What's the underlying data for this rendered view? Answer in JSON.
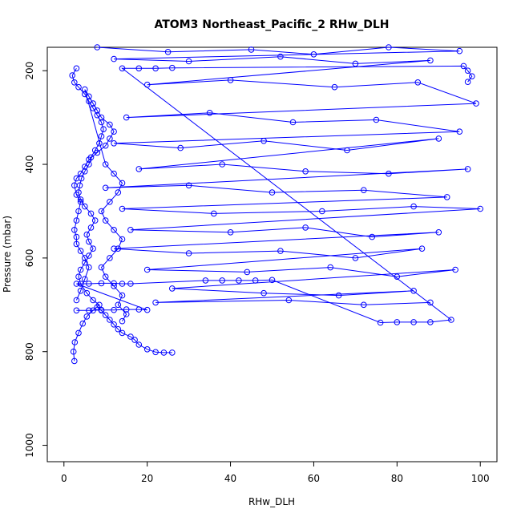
{
  "chart_data": {
    "type": "scatter",
    "title": "ATOM3 Northeast_Pacific_2 RHw_DLH",
    "xlabel": "RHw_DLH",
    "ylabel": "Pressure (mbar)",
    "xlim": [
      -4,
      104
    ],
    "ylim": [
      1035,
      150
    ],
    "y_reversed": true,
    "x_ticks": [
      0,
      20,
      40,
      60,
      80,
      100
    ],
    "y_ticks": [
      200,
      400,
      600,
      800,
      1000
    ],
    "grid": false,
    "legend": "none",
    "marker": "open-circle",
    "color": "#0000ff",
    "series": [
      {
        "values": [
          [
            2.5,
            820
          ],
          [
            2.3,
            800
          ],
          [
            2.6,
            780
          ],
          [
            3.5,
            760
          ],
          [
            4.5,
            740
          ],
          [
            5.5,
            725
          ],
          [
            7.0,
            712
          ],
          [
            8.5,
            700
          ],
          [
            7.0,
            690
          ],
          [
            5.5,
            675
          ],
          [
            4.0,
            655
          ],
          [
            3.5,
            640
          ],
          [
            4.0,
            625
          ],
          [
            5.0,
            610
          ],
          [
            6.0,
            595
          ],
          [
            7.0,
            580
          ],
          [
            6.0,
            565
          ],
          [
            5.5,
            550
          ],
          [
            6.5,
            535
          ],
          [
            7.5,
            520
          ],
          [
            6.5,
            505
          ],
          [
            5.0,
            490
          ],
          [
            4.0,
            475
          ],
          [
            3.5,
            460
          ],
          [
            3.8,
            445
          ],
          [
            4.2,
            430
          ],
          [
            5.0,
            415
          ],
          [
            6.0,
            400
          ],
          [
            6.5,
            385
          ],
          [
            7.5,
            370
          ],
          [
            8.5,
            355
          ],
          [
            9.0,
            340
          ],
          [
            9.5,
            325
          ],
          [
            9.0,
            310
          ],
          [
            8.0,
            295
          ],
          [
            7.0,
            280
          ],
          [
            6.0,
            265
          ],
          [
            5.0,
            250
          ],
          [
            3.5,
            235
          ],
          [
            2.5,
            225
          ],
          [
            2.0,
            210
          ],
          [
            3.0,
            195
          ]
        ]
      },
      {
        "values": [
          [
            26,
            802
          ],
          [
            24,
            802
          ],
          [
            22,
            801
          ],
          [
            20,
            795
          ],
          [
            18,
            785
          ],
          [
            17,
            775
          ],
          [
            16,
            768
          ],
          [
            14,
            760
          ],
          [
            13,
            752
          ],
          [
            12,
            742
          ],
          [
            11,
            732
          ],
          [
            10,
            722
          ],
          [
            9,
            712
          ],
          [
            8,
            705
          ]
        ]
      },
      {
        "values": [
          [
            3,
            712
          ],
          [
            6,
            712
          ],
          [
            9,
            711
          ],
          [
            12,
            711
          ],
          [
            15,
            710
          ],
          [
            18,
            710
          ],
          [
            20,
            711
          ],
          [
            3,
            655
          ],
          [
            6,
            655
          ],
          [
            9,
            654
          ],
          [
            12,
            654
          ],
          [
            14,
            655
          ],
          [
            16,
            655
          ],
          [
            34,
            648
          ],
          [
            38,
            648
          ],
          [
            42,
            648
          ],
          [
            46,
            648
          ],
          [
            50,
            647
          ],
          [
            76,
            738
          ],
          [
            80,
            737
          ],
          [
            84,
            737
          ],
          [
            88,
            737
          ],
          [
            93,
            732
          ],
          [
            14,
            195
          ],
          [
            18,
            195
          ],
          [
            22,
            195
          ],
          [
            26,
            194
          ],
          [
            96,
            190
          ],
          [
            97,
            200
          ],
          [
            98,
            212
          ],
          [
            97,
            224
          ]
        ]
      },
      {
        "values": [
          [
            8,
            150
          ],
          [
            25,
            160
          ],
          [
            45,
            155
          ],
          [
            60,
            165
          ],
          [
            78,
            150
          ],
          [
            95,
            158
          ],
          [
            12,
            175
          ],
          [
            30,
            180
          ],
          [
            52,
            170
          ],
          [
            70,
            185
          ],
          [
            88,
            178
          ],
          [
            20,
            230
          ],
          [
            40,
            220
          ],
          [
            65,
            235
          ],
          [
            85,
            225
          ],
          [
            99,
            270
          ],
          [
            15,
            300
          ],
          [
            35,
            290
          ],
          [
            55,
            310
          ],
          [
            75,
            305
          ],
          [
            95,
            330
          ],
          [
            12,
            355
          ],
          [
            28,
            365
          ],
          [
            48,
            350
          ],
          [
            68,
            370
          ],
          [
            90,
            345
          ],
          [
            18,
            410
          ],
          [
            38,
            400
          ],
          [
            58,
            415
          ],
          [
            78,
            420
          ],
          [
            97,
            410
          ],
          [
            10,
            450
          ],
          [
            30,
            445
          ],
          [
            50,
            460
          ],
          [
            72,
            455
          ],
          [
            92,
            470
          ],
          [
            14,
            495
          ],
          [
            36,
            505
          ],
          [
            62,
            500
          ],
          [
            84,
            490
          ],
          [
            100,
            495
          ],
          [
            16,
            540
          ],
          [
            40,
            545
          ],
          [
            58,
            535
          ],
          [
            74,
            555
          ],
          [
            90,
            545
          ],
          [
            12,
            580
          ],
          [
            30,
            590
          ],
          [
            52,
            585
          ],
          [
            70,
            600
          ],
          [
            86,
            580
          ],
          [
            20,
            625
          ],
          [
            44,
            630
          ],
          [
            64,
            620
          ],
          [
            80,
            640
          ],
          [
            94,
            625
          ],
          [
            26,
            665
          ],
          [
            48,
            675
          ],
          [
            66,
            680
          ],
          [
            84,
            670
          ],
          [
            22,
            695
          ],
          [
            54,
            690
          ],
          [
            72,
            700
          ],
          [
            88,
            695
          ]
        ]
      },
      {
        "values": [
          [
            3,
            690
          ],
          [
            4,
            670
          ],
          [
            5,
            645
          ],
          [
            6,
            620
          ],
          [
            5,
            600
          ],
          [
            4,
            585
          ],
          [
            3,
            570
          ],
          [
            3,
            555
          ],
          [
            2.5,
            540
          ],
          [
            3,
            520
          ],
          [
            3.5,
            500
          ],
          [
            4,
            480
          ],
          [
            3,
            465
          ],
          [
            2.5,
            445
          ],
          [
            3,
            430
          ],
          [
            4,
            420
          ],
          [
            5,
            405
          ],
          [
            6,
            390
          ],
          [
            8,
            375
          ],
          [
            10,
            360
          ],
          [
            11,
            345
          ],
          [
            12,
            330
          ],
          [
            11,
            315
          ],
          [
            9,
            300
          ],
          [
            8,
            285
          ],
          [
            7,
            270
          ],
          [
            6,
            255
          ],
          [
            5,
            240
          ],
          [
            10,
            400
          ],
          [
            12,
            420
          ],
          [
            14,
            440
          ],
          [
            13,
            460
          ],
          [
            11,
            480
          ],
          [
            9,
            500
          ],
          [
            10,
            520
          ],
          [
            12,
            540
          ],
          [
            14,
            560
          ],
          [
            13,
            580
          ],
          [
            11,
            600
          ],
          [
            9,
            620
          ],
          [
            10,
            640
          ],
          [
            12,
            660
          ],
          [
            14,
            680
          ],
          [
            13,
            700
          ],
          [
            15,
            720
          ],
          [
            14,
            735
          ]
        ]
      }
    ]
  }
}
